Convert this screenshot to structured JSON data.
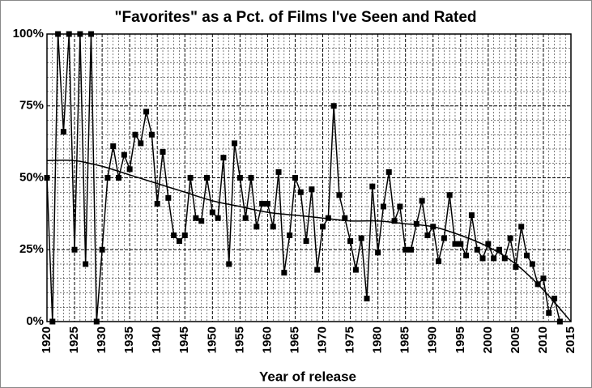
{
  "chart_data": {
    "type": "line",
    "title": "\"Favorites\" as a Pct. of Films I've Seen and Rated",
    "x_label": "Year of release",
    "x": [
      1920,
      1921,
      1922,
      1923,
      1924,
      1925,
      1926,
      1927,
      1928,
      1929,
      1930,
      1931,
      1932,
      1933,
      1934,
      1935,
      1936,
      1937,
      1938,
      1939,
      1940,
      1941,
      1942,
      1943,
      1944,
      1945,
      1946,
      1947,
      1948,
      1949,
      1950,
      1951,
      1952,
      1953,
      1954,
      1955,
      1956,
      1957,
      1958,
      1959,
      1960,
      1961,
      1962,
      1963,
      1964,
      1965,
      1966,
      1967,
      1968,
      1969,
      1970,
      1971,
      1972,
      1973,
      1974,
      1975,
      1976,
      1977,
      1978,
      1979,
      1980,
      1981,
      1982,
      1983,
      1984,
      1985,
      1986,
      1987,
      1988,
      1989,
      1990,
      1991,
      1992,
      1993,
      1994,
      1995,
      1996,
      1997,
      1998,
      1999,
      2000,
      2001,
      2002,
      2003,
      2004,
      2005,
      2006,
      2007,
      2008,
      2009,
      2010,
      2011,
      2012,
      2013
    ],
    "series": [
      {
        "color": "#000000",
        "values": [
          50,
          0,
          100,
          66,
          100,
          25,
          100,
          20,
          100,
          0,
          25,
          50,
          61,
          50,
          58,
          53,
          65,
          62,
          73,
          65,
          41,
          59,
          43,
          30,
          28,
          30,
          50,
          36,
          35,
          50,
          38,
          36,
          57,
          20,
          62,
          50,
          36,
          50,
          33,
          41,
          41,
          33,
          52,
          17,
          30,
          50,
          45,
          28,
          46,
          18,
          33,
          36,
          75,
          44,
          36,
          28,
          18,
          29,
          8,
          47,
          24,
          40,
          52,
          35,
          40,
          25,
          25,
          34,
          42,
          30,
          33,
          21,
          29,
          44,
          27,
          27,
          23,
          37,
          25,
          22,
          27,
          22,
          25,
          22,
          29,
          19,
          33,
          23,
          20,
          13,
          15,
          3,
          8,
          0
        ]
      }
    ],
    "trendline": {
      "color": "#000000",
      "x": [
        1920,
        1925,
        1930,
        1935,
        1940,
        1945,
        1950,
        1955,
        1960,
        1965,
        1970,
        1975,
        1980,
        1985,
        1990,
        1995,
        2000,
        2005,
        2010,
        2015
      ],
      "values": [
        56,
        56,
        54,
        51,
        48,
        45,
        42,
        40,
        38,
        37,
        36,
        35,
        35,
        34,
        33,
        30,
        26,
        20,
        11,
        0
      ]
    },
    "xlim": [
      1920,
      2015
    ],
    "xticks": [
      1920,
      1925,
      1930,
      1935,
      1940,
      1945,
      1950,
      1955,
      1960,
      1965,
      1970,
      1975,
      1980,
      1985,
      1990,
      1995,
      2000,
      2005,
      2010,
      2015
    ],
    "ylim": [
      0,
      100
    ],
    "yticks": [
      {
        "value": 0,
        "label": "0%"
      },
      {
        "value": 25,
        "label": "25%"
      },
      {
        "value": 50,
        "label": "50%"
      },
      {
        "value": 75,
        "label": "75%"
      },
      {
        "value": 100,
        "label": "100%"
      }
    ],
    "grid": true
  }
}
